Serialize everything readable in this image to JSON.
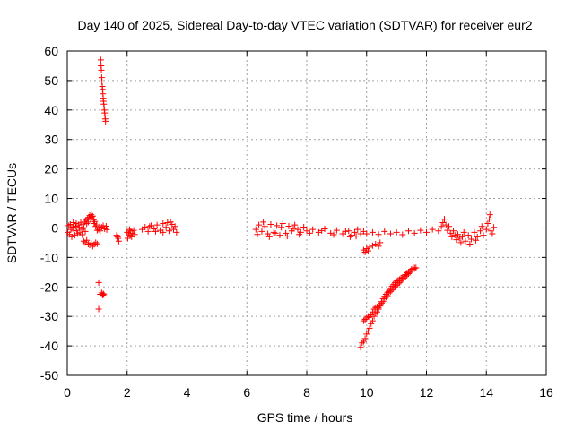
{
  "chart_data": {
    "type": "scatter",
    "title": "Day 140 of 2025, Sidereal Day-to-day VTEC variation (SDTVAR) for receiver eur2",
    "xlabel": "GPS time / hours",
    "ylabel": "SDTVAR / TECUs",
    "xlim": [
      0,
      16
    ],
    "ylim": [
      -50,
      60
    ],
    "xticks": [
      0,
      2,
      4,
      6,
      8,
      10,
      12,
      14,
      16
    ],
    "yticks": [
      -50,
      -40,
      -30,
      -20,
      -10,
      0,
      10,
      20,
      30,
      40,
      50,
      60
    ],
    "grid": true,
    "marker": "+",
    "color": "#ff0000",
    "series": [
      {
        "name": "SDTVAR",
        "points": [
          [
            0.02,
            -1.5
          ],
          [
            0.05,
            0.8
          ],
          [
            0.08,
            -2.2
          ],
          [
            0.1,
            1.2
          ],
          [
            0.12,
            -0.5
          ],
          [
            0.15,
            -3.0
          ],
          [
            0.18,
            0.3
          ],
          [
            0.2,
            1.8
          ],
          [
            0.22,
            -1.0
          ],
          [
            0.25,
            -2.5
          ],
          [
            0.28,
            0.6
          ],
          [
            0.3,
            1.5
          ],
          [
            0.32,
            -0.8
          ],
          [
            0.35,
            -2.0
          ],
          [
            0.38,
            1.0
          ],
          [
            0.4,
            0.2
          ],
          [
            0.42,
            -1.6
          ],
          [
            0.45,
            1.9
          ],
          [
            0.48,
            -0.4
          ],
          [
            0.5,
            -2.3
          ],
          [
            0.52,
            1.3
          ],
          [
            0.55,
            0.1
          ],
          [
            0.58,
            2.0
          ],
          [
            0.6,
            -1.2
          ],
          [
            0.62,
            2.6
          ],
          [
            0.65,
            1.5
          ],
          [
            0.68,
            3.2
          ],
          [
            0.7,
            2.0
          ],
          [
            0.72,
            3.6
          ],
          [
            0.75,
            4.2
          ],
          [
            0.78,
            3.0
          ],
          [
            0.8,
            4.5
          ],
          [
            0.82,
            3.8
          ],
          [
            0.85,
            4.0
          ],
          [
            0.88,
            2.8
          ],
          [
            0.9,
            1.5
          ],
          [
            0.92,
            2.2
          ],
          [
            0.95,
            0.5
          ],
          [
            0.98,
            1.0
          ],
          [
            1.0,
            -0.8
          ],
          [
            0.55,
            -4.5
          ],
          [
            0.6,
            -5.0
          ],
          [
            0.65,
            -4.2
          ],
          [
            0.7,
            -5.5
          ],
          [
            0.75,
            -5.8
          ],
          [
            0.8,
            -5.2
          ],
          [
            0.85,
            -6.2
          ],
          [
            0.9,
            -5.6
          ],
          [
            0.95,
            -5.0
          ],
          [
            1.0,
            -5.4
          ],
          [
            1.05,
            -0.5
          ],
          [
            1.08,
            0.4
          ],
          [
            1.1,
            -1.0
          ],
          [
            1.15,
            0.2
          ],
          [
            1.2,
            0.8
          ],
          [
            1.25,
            -0.3
          ],
          [
            1.3,
            0.6
          ],
          [
            1.32,
            -0.6
          ],
          [
            1.05,
            -18.5
          ],
          [
            1.05,
            -27.5
          ],
          [
            1.1,
            -22.5
          ],
          [
            1.15,
            -22.0
          ],
          [
            1.18,
            -22.8
          ],
          [
            1.2,
            -22.3
          ],
          [
            1.22,
            -22.6
          ],
          [
            1.12,
            57.0
          ],
          [
            1.13,
            55.0
          ],
          [
            1.14,
            53.5
          ],
          [
            1.15,
            51.0
          ],
          [
            1.16,
            49.5
          ],
          [
            1.17,
            48.0
          ],
          [
            1.18,
            47.0
          ],
          [
            1.19,
            45.5
          ],
          [
            1.2,
            44.0
          ],
          [
            1.21,
            43.0
          ],
          [
            1.22,
            42.0
          ],
          [
            1.23,
            41.0
          ],
          [
            1.24,
            40.0
          ],
          [
            1.25,
            39.0
          ],
          [
            1.26,
            38.0
          ],
          [
            1.27,
            37.0
          ],
          [
            1.28,
            36.2
          ],
          [
            1.65,
            -2.5
          ],
          [
            1.7,
            -3.5
          ],
          [
            1.72,
            -4.5
          ],
          [
            1.68,
            -3.0
          ],
          [
            2.0,
            -1.5
          ],
          [
            2.02,
            -3.5
          ],
          [
            2.05,
            -2.0
          ],
          [
            2.08,
            -0.5
          ],
          [
            2.1,
            -2.5
          ],
          [
            2.12,
            -1.0
          ],
          [
            2.15,
            -3.0
          ],
          [
            2.18,
            -1.8
          ],
          [
            2.22,
            -0.8
          ],
          [
            2.25,
            -2.2
          ],
          [
            2.5,
            -0.5
          ],
          [
            2.6,
            0.3
          ],
          [
            2.7,
            -1.2
          ],
          [
            2.8,
            0.8
          ],
          [
            2.9,
            -0.3
          ],
          [
            3.0,
            1.0
          ],
          [
            3.1,
            -0.8
          ],
          [
            3.2,
            1.5
          ],
          [
            3.3,
            0.2
          ],
          [
            3.4,
            -1.0
          ],
          [
            3.5,
            1.2
          ],
          [
            3.55,
            -0.5
          ],
          [
            3.6,
            0.5
          ],
          [
            3.65,
            -1.5
          ],
          [
            3.7,
            0.0
          ],
          [
            3.2,
            -1.5
          ],
          [
            3.35,
            1.8
          ],
          [
            2.95,
            -1.2
          ],
          [
            3.45,
            2.0
          ],
          [
            2.75,
            0.5
          ],
          [
            6.3,
            -0.5
          ],
          [
            6.4,
            1.0
          ],
          [
            6.5,
            -1.2
          ],
          [
            6.6,
            0.5
          ],
          [
            6.7,
            -2.0
          ],
          [
            6.8,
            1.2
          ],
          [
            6.9,
            -1.5
          ],
          [
            7.0,
            0.8
          ],
          [
            7.1,
            -2.5
          ],
          [
            7.2,
            1.5
          ],
          [
            7.3,
            -1.8
          ],
          [
            7.4,
            0.6
          ],
          [
            7.5,
            -1.0
          ],
          [
            7.6,
            1.0
          ],
          [
            7.7,
            -0.5
          ],
          [
            7.8,
            -1.5
          ],
          [
            7.9,
            0.3
          ],
          [
            8.0,
            -1.0
          ],
          [
            8.2,
            -0.5
          ],
          [
            8.4,
            -1.5
          ],
          [
            8.6,
            -0.3
          ],
          [
            8.8,
            -1.8
          ],
          [
            9.0,
            -0.8
          ],
          [
            9.2,
            -2.0
          ],
          [
            9.4,
            -1.0
          ],
          [
            9.5,
            -2.5
          ],
          [
            9.6,
            -1.5
          ],
          [
            9.7,
            -0.5
          ],
          [
            9.8,
            -2.0
          ],
          [
            9.9,
            -1.2
          ],
          [
            6.35,
            -2.2
          ],
          [
            6.55,
            2.0
          ],
          [
            6.75,
            -3.0
          ],
          [
            6.95,
            -1.8
          ],
          [
            7.15,
            0.2
          ],
          [
            7.35,
            -2.8
          ],
          [
            7.55,
            -0.2
          ],
          [
            7.75,
            -2.2
          ],
          [
            8.1,
            -1.8
          ],
          [
            8.5,
            -0.9
          ],
          [
            8.9,
            -2.3
          ],
          [
            9.3,
            -1.2
          ],
          [
            9.45,
            -3.0
          ],
          [
            9.65,
            -2.8
          ],
          [
            9.9,
            -7.5
          ],
          [
            9.95,
            -8.2
          ],
          [
            10.0,
            -7.0
          ],
          [
            10.05,
            -7.8
          ],
          [
            10.1,
            -6.5
          ],
          [
            10.2,
            -6.0
          ],
          [
            10.3,
            -5.5
          ],
          [
            10.4,
            -6.2
          ],
          [
            10.45,
            -5.0
          ],
          [
            10.0,
            -2.0
          ],
          [
            10.2,
            -1.5
          ],
          [
            10.4,
            -2.2
          ],
          [
            10.6,
            -1.2
          ],
          [
            10.8,
            -2.0
          ],
          [
            11.0,
            -1.5
          ],
          [
            11.2,
            -2.3
          ],
          [
            11.4,
            -1.0
          ],
          [
            11.6,
            -1.8
          ],
          [
            11.8,
            -0.8
          ],
          [
            12.0,
            -1.5
          ],
          [
            12.2,
            -0.5
          ],
          [
            12.4,
            -1.0
          ],
          [
            12.5,
            0.5
          ],
          [
            12.55,
            1.8
          ],
          [
            12.6,
            3.0
          ],
          [
            12.65,
            1.0
          ],
          [
            12.7,
            -0.8
          ],
          [
            12.75,
            0.5
          ],
          [
            12.8,
            -1.8
          ],
          [
            12.85,
            -3.0
          ],
          [
            12.9,
            -1.0
          ],
          [
            12.95,
            -2.5
          ],
          [
            13.0,
            -4.0
          ],
          [
            13.05,
            -2.2
          ],
          [
            13.1,
            -3.5
          ],
          [
            13.15,
            -5.0
          ],
          [
            13.2,
            -3.0
          ],
          [
            13.3,
            -4.5
          ],
          [
            13.4,
            -2.5
          ],
          [
            13.5,
            -3.8
          ],
          [
            13.6,
            -1.5
          ],
          [
            13.7,
            -3.0
          ],
          [
            13.8,
            -1.0
          ],
          [
            13.9,
            -2.5
          ],
          [
            14.0,
            -0.5
          ],
          [
            14.05,
            1.5
          ],
          [
            14.1,
            3.0
          ],
          [
            14.12,
            4.5
          ],
          [
            14.15,
            -1.0
          ],
          [
            14.2,
            -2.0
          ],
          [
            14.25,
            0.2
          ],
          [
            13.25,
            -1.5
          ],
          [
            13.45,
            -5.5
          ],
          [
            13.65,
            -4.2
          ],
          [
            13.85,
            0.5
          ],
          [
            9.8,
            -40.5
          ],
          [
            9.85,
            -39.0
          ],
          [
            9.9,
            -38.5
          ],
          [
            9.95,
            -37.5
          ],
          [
            10.0,
            -36.0
          ],
          [
            10.05,
            -35.0
          ],
          [
            10.1,
            -34.0
          ],
          [
            10.15,
            -32.5
          ],
          [
            10.2,
            -31.5
          ],
          [
            10.25,
            -30.0
          ],
          [
            10.3,
            -29.0
          ],
          [
            10.35,
            -28.5
          ],
          [
            10.4,
            -27.0
          ],
          [
            10.45,
            -26.5
          ],
          [
            10.5,
            -25.5
          ],
          [
            10.55,
            -25.0
          ],
          [
            10.6,
            -24.0
          ],
          [
            10.65,
            -23.5
          ],
          [
            10.7,
            -23.0
          ],
          [
            10.75,
            -22.0
          ],
          [
            10.8,
            -21.5
          ],
          [
            10.85,
            -21.0
          ],
          [
            10.9,
            -20.5
          ],
          [
            10.95,
            -20.0
          ],
          [
            11.0,
            -19.5
          ],
          [
            11.05,
            -19.0
          ],
          [
            11.1,
            -18.5
          ],
          [
            11.15,
            -18.0
          ],
          [
            11.2,
            -17.5
          ],
          [
            11.25,
            -17.0
          ],
          [
            11.3,
            -16.5
          ],
          [
            11.35,
            -16.0
          ],
          [
            11.4,
            -15.5
          ],
          [
            11.45,
            -15.0
          ],
          [
            11.5,
            -14.5
          ],
          [
            11.55,
            -14.0
          ],
          [
            11.6,
            -13.8
          ],
          [
            11.65,
            -13.5
          ],
          [
            9.9,
            -31.5
          ],
          [
            9.95,
            -31.0
          ],
          [
            10.0,
            -30.5
          ],
          [
            10.05,
            -30.0
          ],
          [
            10.1,
            -30.2
          ],
          [
            10.15,
            -29.5
          ],
          [
            10.2,
            -28.5
          ],
          [
            10.25,
            -27.5
          ],
          [
            10.3,
            -27.0
          ],
          [
            10.35,
            -26.8
          ],
          [
            10.4,
            -27.5
          ],
          [
            10.45,
            -26.0
          ],
          [
            10.5,
            -25.0
          ],
          [
            10.55,
            -24.0
          ],
          [
            10.6,
            -23.2
          ],
          [
            10.65,
            -22.5
          ],
          [
            10.7,
            -21.8
          ],
          [
            10.75,
            -21.2
          ],
          [
            10.8,
            -20.5
          ],
          [
            10.85,
            -19.8
          ],
          [
            10.9,
            -19.2
          ],
          [
            10.95,
            -18.5
          ],
          [
            11.0,
            -18.0
          ],
          [
            11.05,
            -17.8
          ],
          [
            11.1,
            -17.5
          ],
          [
            11.15,
            -17.0
          ],
          [
            11.2,
            -16.8
          ],
          [
            11.25,
            -16.2
          ],
          [
            11.3,
            -15.8
          ],
          [
            11.35,
            -15.2
          ],
          [
            11.4,
            -15.0
          ],
          [
            11.45,
            -14.6
          ],
          [
            11.5,
            -14.0
          ],
          [
            11.55,
            -13.8
          ],
          [
            11.6,
            -13.5
          ]
        ]
      }
    ]
  }
}
